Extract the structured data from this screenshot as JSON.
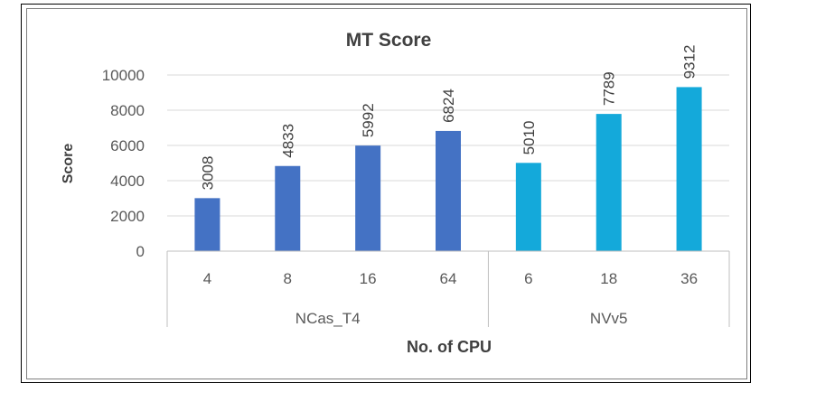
{
  "chart_data": {
    "type": "bar",
    "title": "MT Score",
    "xlabel": "No. of CPU",
    "ylabel": "Score",
    "ylim": [
      0,
      10000
    ],
    "yticks": [
      0,
      2000,
      4000,
      6000,
      8000,
      10000
    ],
    "grid": true,
    "groups": [
      {
        "name": "NCas_T4",
        "color": "#4472c4",
        "categories": [
          "4",
          "8",
          "16",
          "64"
        ],
        "values": [
          3008,
          4833,
          5992,
          6824
        ]
      },
      {
        "name": "NVv5",
        "color": "#14a9da",
        "categories": [
          "6",
          "18",
          "36"
        ],
        "values": [
          5010,
          7789,
          9312
        ]
      }
    ]
  }
}
